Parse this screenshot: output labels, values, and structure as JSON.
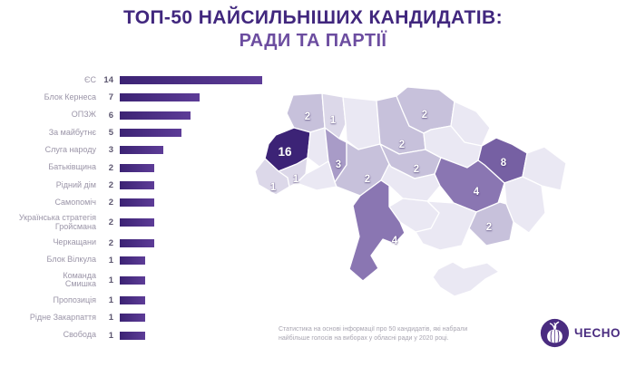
{
  "title": {
    "line1": "ТОП-50 НАЙСИЛЬНІШИХ КАНДИДАТІВ:",
    "line2": "РАДИ ТА ПАРТІЇ"
  },
  "chart_data": [
    {
      "type": "bar",
      "orientation": "horizontal",
      "title": "",
      "categories": [
        "ЄС",
        "Блок Кернеса",
        "ОПЗЖ",
        "За майбутнє",
        "Слуга народу",
        "Батьківщина",
        "Рідний дім",
        "Самопоміч",
        "Українська стратегія\nГройсмана",
        "Черкащани",
        "Блок Вілкула",
        "Команда\nСмишка",
        "Пропозиція",
        "Рідне Закарпаття",
        "Свобода"
      ],
      "values": [
        14,
        7,
        6,
        5,
        3,
        2,
        2,
        2,
        2,
        2,
        1,
        1,
        1,
        1,
        1
      ],
      "xlim": [
        0,
        14
      ],
      "value_labels_shown": true,
      "grid": false,
      "legend": "none"
    },
    {
      "type": "choropleth",
      "title": "",
      "geography": "ukraine-oblasts",
      "series": [
        {
          "id": "volyn",
          "value": 2
        },
        {
          "id": "rivne",
          "value": 1
        },
        {
          "id": "zhytomyr",
          "value": null
        },
        {
          "id": "kyiv",
          "value": 2
        },
        {
          "id": "chernihiv",
          "value": 2
        },
        {
          "id": "sumy",
          "value": null
        },
        {
          "id": "lviv",
          "value": 16
        },
        {
          "id": "ternopil",
          "value": null
        },
        {
          "id": "khmelnytskyi",
          "value": 3
        },
        {
          "id": "zakarpattia",
          "value": 1
        },
        {
          "id": "ivano-frankivsk",
          "value": 1
        },
        {
          "id": "chernivtsi",
          "value": null
        },
        {
          "id": "vinnytsia",
          "value": 2
        },
        {
          "id": "cherkasy",
          "value": 2
        },
        {
          "id": "poltava",
          "value": null
        },
        {
          "id": "kirovohrad",
          "value": null
        },
        {
          "id": "kharkiv",
          "value": 8
        },
        {
          "id": "luhansk",
          "value": null
        },
        {
          "id": "donetsk",
          "value": null
        },
        {
          "id": "dnipropetrovsk",
          "value": 4
        },
        {
          "id": "zaporizhzhia",
          "value": 2
        },
        {
          "id": "kherson",
          "value": null
        },
        {
          "id": "mykolaiv",
          "value": null
        },
        {
          "id": "odesa",
          "value": 4
        },
        {
          "id": "crimea",
          "value": null
        }
      ],
      "palette": {
        "none": "#eae8f3",
        "1": "#dcd8e9",
        "2": "#c7c1db",
        "3": "#a89bc7",
        "4": "#8a76b2",
        "8": "#7660a3",
        "16": "#3c2376"
      }
    }
  ],
  "footer": {
    "note": "Статистика на основі інформації про 50 кандидатів, які набрали найбільше голосів на виборах у обласні ради у 2020 році.",
    "logo_text": "ЧЕСНО"
  },
  "colors": {
    "title_primary": "#41277e",
    "title_secondary": "#6c4da0",
    "bar_gradient_start": "#3c2374",
    "bar_gradient_end": "#5d3c97",
    "bar_label": "#9b95a8",
    "bar_value": "#5d5770",
    "note_text": "#a8a5b1",
    "logo": "#4a2c80",
    "map_border": "#ffffff"
  }
}
